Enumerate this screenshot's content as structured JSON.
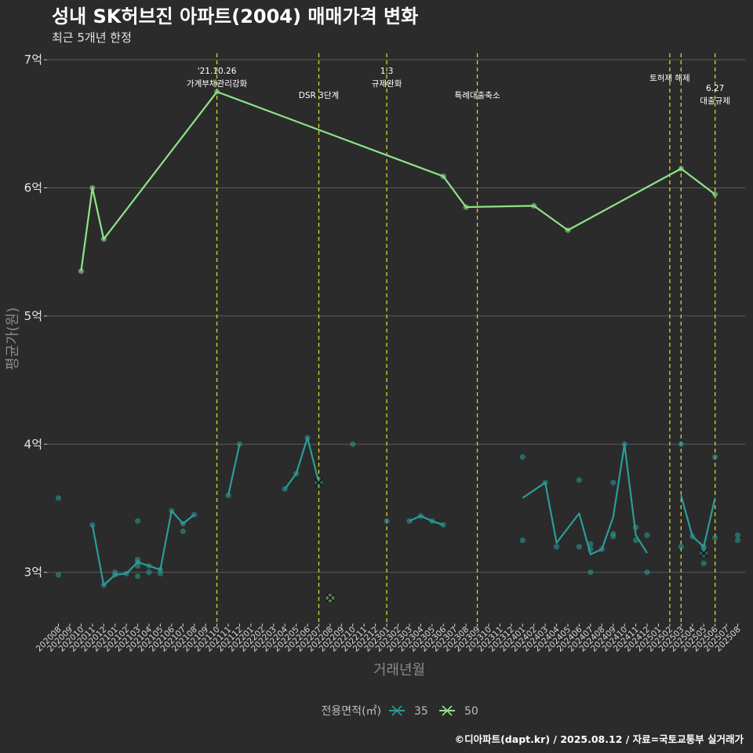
{
  "header": {
    "title": "성내 SK허브진 아파트(2004) 매매가격 변화",
    "subtitle": "최근 5개년 한정"
  },
  "caption": "©디아파트(dapt.kr) / 2025.08.12 / 자료=국토교통부 실거래가",
  "legend": {
    "title": "전용면적(㎡)",
    "items": [
      "35",
      "50"
    ]
  },
  "colors": {
    "background": "#2b2b2b",
    "grid": "#5a5a5a",
    "series_35": "#2a9d99",
    "series_50": "#8fe388",
    "event_line": "#d4d629"
  },
  "chart_data": {
    "type": "line",
    "title": "성내 SK허브진 아파트(2004) 매매가격 변화",
    "subtitle": "최근 5개년 한정",
    "xlabel": "거래년월",
    "ylabel": "평균가(원)",
    "ylim": [
      2.6,
      7.05
    ],
    "y_ticks": [
      3,
      4,
      5,
      6,
      7
    ],
    "y_tick_labels": [
      "3억",
      "4억",
      "5억",
      "6억",
      "7억"
    ],
    "grid": true,
    "legend_position": "bottom",
    "categories": [
      "202008",
      "202009",
      "202010",
      "202011",
      "202012",
      "202101",
      "202102",
      "202103",
      "202104",
      "202105",
      "202106",
      "202107",
      "202108",
      "202109",
      "202110",
      "202111",
      "202112",
      "202201",
      "202202",
      "202203",
      "202204",
      "202205",
      "202206",
      "202207",
      "202208",
      "202209",
      "202210",
      "202211",
      "202212",
      "202301",
      "202302",
      "202303",
      "202304",
      "202305",
      "202306",
      "202307",
      "202308",
      "202309",
      "202310",
      "202311",
      "202312",
      "202401",
      "202402",
      "202403",
      "202404",
      "202405",
      "202406",
      "202407",
      "202408",
      "202409",
      "202410",
      "202411",
      "202412",
      "202501",
      "202502",
      "202503",
      "202504",
      "202505",
      "202506",
      "202507",
      "202508"
    ],
    "events": [
      {
        "x": "202110",
        "label_lines": [
          "'21.10.26",
          "가계부채관리강화"
        ]
      },
      {
        "x": "202207",
        "label_lines": [
          "DSR 3단계"
        ]
      },
      {
        "x": "202301",
        "label_lines": [
          "1.3",
          "규제완화"
        ]
      },
      {
        "x": "202309",
        "label_lines": [
          "특례대출축소"
        ]
      },
      {
        "x": "202502",
        "label_lines": [
          "토허제 해제"
        ]
      },
      {
        "x": "202503",
        "label_lines": []
      },
      {
        "x": "202506",
        "label_lines": [
          "6.27",
          "대출규제"
        ]
      }
    ],
    "series": [
      {
        "name": "35",
        "line": [
          [
            [
              "202011",
              3.37
            ],
            [
              "202012",
              2.9
            ],
            [
              "202101",
              2.98
            ],
            [
              "202102",
              2.99
            ],
            [
              "202103",
              3.08
            ],
            [
              "202104",
              3.05
            ],
            [
              "202105",
              3.02
            ],
            [
              "202106",
              3.48
            ],
            [
              "202107",
              3.38
            ],
            [
              "202108",
              3.45
            ]
          ],
          [
            [
              "202111",
              3.6
            ],
            [
              "202112",
              4.0
            ]
          ],
          [
            [
              "202204",
              3.65
            ],
            [
              "202205",
              3.77
            ],
            [
              "202206",
              4.05
            ],
            [
              "202207",
              3.7
            ]
          ],
          [
            [
              "202303",
              3.4
            ],
            [
              "202304",
              3.44
            ],
            [
              "202305",
              3.4
            ],
            [
              "202306",
              3.37
            ]
          ],
          [
            [
              "202401",
              3.58
            ],
            [
              "202403",
              3.7
            ],
            [
              "202404",
              3.23
            ],
            [
              "202406",
              3.46
            ],
            [
              "202407",
              3.14
            ],
            [
              "202408",
              3.18
            ],
            [
              "202409",
              3.43
            ],
            [
              "202410",
              4.0
            ],
            [
              "202411",
              3.29
            ],
            [
              "202412",
              3.15
            ]
          ],
          [
            [
              "202503",
              3.6
            ],
            [
              "202504",
              3.28
            ],
            [
              "202505",
              3.2
            ],
            [
              "202506",
              3.58
            ]
          ]
        ],
        "points": [
          [
            "202008",
            3.58
          ],
          [
            "202008",
            2.98
          ],
          [
            "202011",
            3.37
          ],
          [
            "202012",
            2.9
          ],
          [
            "202101",
            2.98
          ],
          [
            "202101",
            3.0
          ],
          [
            "202102",
            2.99
          ],
          [
            "202103",
            3.4
          ],
          [
            "202103",
            3.1
          ],
          [
            "202103",
            3.08
          ],
          [
            "202103",
            3.05
          ],
          [
            "202103",
            2.97
          ],
          [
            "202104",
            3.05
          ],
          [
            "202104",
            3.0
          ],
          [
            "202105",
            3.02
          ],
          [
            "202105",
            2.99
          ],
          [
            "202106",
            3.48
          ],
          [
            "202107",
            3.38
          ],
          [
            "202107",
            3.32
          ],
          [
            "202108",
            3.45
          ],
          [
            "202111",
            3.6
          ],
          [
            "202112",
            4.0
          ],
          [
            "202204",
            3.65
          ],
          [
            "202205",
            3.77
          ],
          [
            "202206",
            4.05
          ],
          [
            "202210",
            4.0
          ],
          [
            "202301",
            3.4
          ],
          [
            "202303",
            3.4
          ],
          [
            "202304",
            3.44
          ],
          [
            "202305",
            3.4
          ],
          [
            "202306",
            3.37
          ],
          [
            "202401",
            3.9
          ],
          [
            "202401",
            3.25
          ],
          [
            "202403",
            3.7
          ],
          [
            "202404",
            3.2
          ],
          [
            "202406",
            3.72
          ],
          [
            "202406",
            3.2
          ],
          [
            "202407",
            3.22
          ],
          [
            "202407",
            3.18
          ],
          [
            "202407",
            3.0
          ],
          [
            "202408",
            3.18
          ],
          [
            "202409",
            3.7
          ],
          [
            "202409",
            3.3
          ],
          [
            "202409",
            3.28
          ],
          [
            "202410",
            4.0
          ],
          [
            "202411",
            3.35
          ],
          [
            "202411",
            3.25
          ],
          [
            "202412",
            3.29
          ],
          [
            "202412",
            3.0
          ],
          [
            "202503",
            4.0
          ],
          [
            "202503",
            3.2
          ],
          [
            "202504",
            3.28
          ],
          [
            "202505",
            3.2
          ],
          [
            "202505",
            3.18
          ],
          [
            "202505",
            3.07
          ],
          [
            "202506",
            3.9
          ],
          [
            "202506",
            3.27
          ],
          [
            "202508",
            3.29
          ],
          [
            "202508",
            3.25
          ]
        ],
        "crosses": [
          [
            "202207",
            3.7
          ],
          [
            "202505",
            3.15
          ]
        ]
      },
      {
        "name": "50",
        "line": [
          [
            [
              "202010",
              5.35
            ],
            [
              "202011",
              6.0
            ],
            [
              "202012",
              5.6
            ],
            [
              "202110",
              6.75
            ],
            [
              "202306",
              6.09
            ],
            [
              "202308",
              5.85
            ],
            [
              "202402",
              5.86
            ],
            [
              "202405",
              5.67
            ],
            [
              "202503",
              6.15
            ],
            [
              "202506",
              5.95
            ]
          ]
        ],
        "points": [
          [
            "202010",
            5.35
          ],
          [
            "202011",
            6.0
          ],
          [
            "202012",
            5.6
          ],
          [
            "202110",
            6.75
          ],
          [
            "202306",
            6.09
          ],
          [
            "202308",
            5.85
          ],
          [
            "202402",
            5.86
          ],
          [
            "202405",
            5.67
          ],
          [
            "202503",
            6.15
          ],
          [
            "202506",
            5.95
          ]
        ],
        "crosses": [
          [
            "202208",
            2.8
          ]
        ]
      }
    ]
  }
}
